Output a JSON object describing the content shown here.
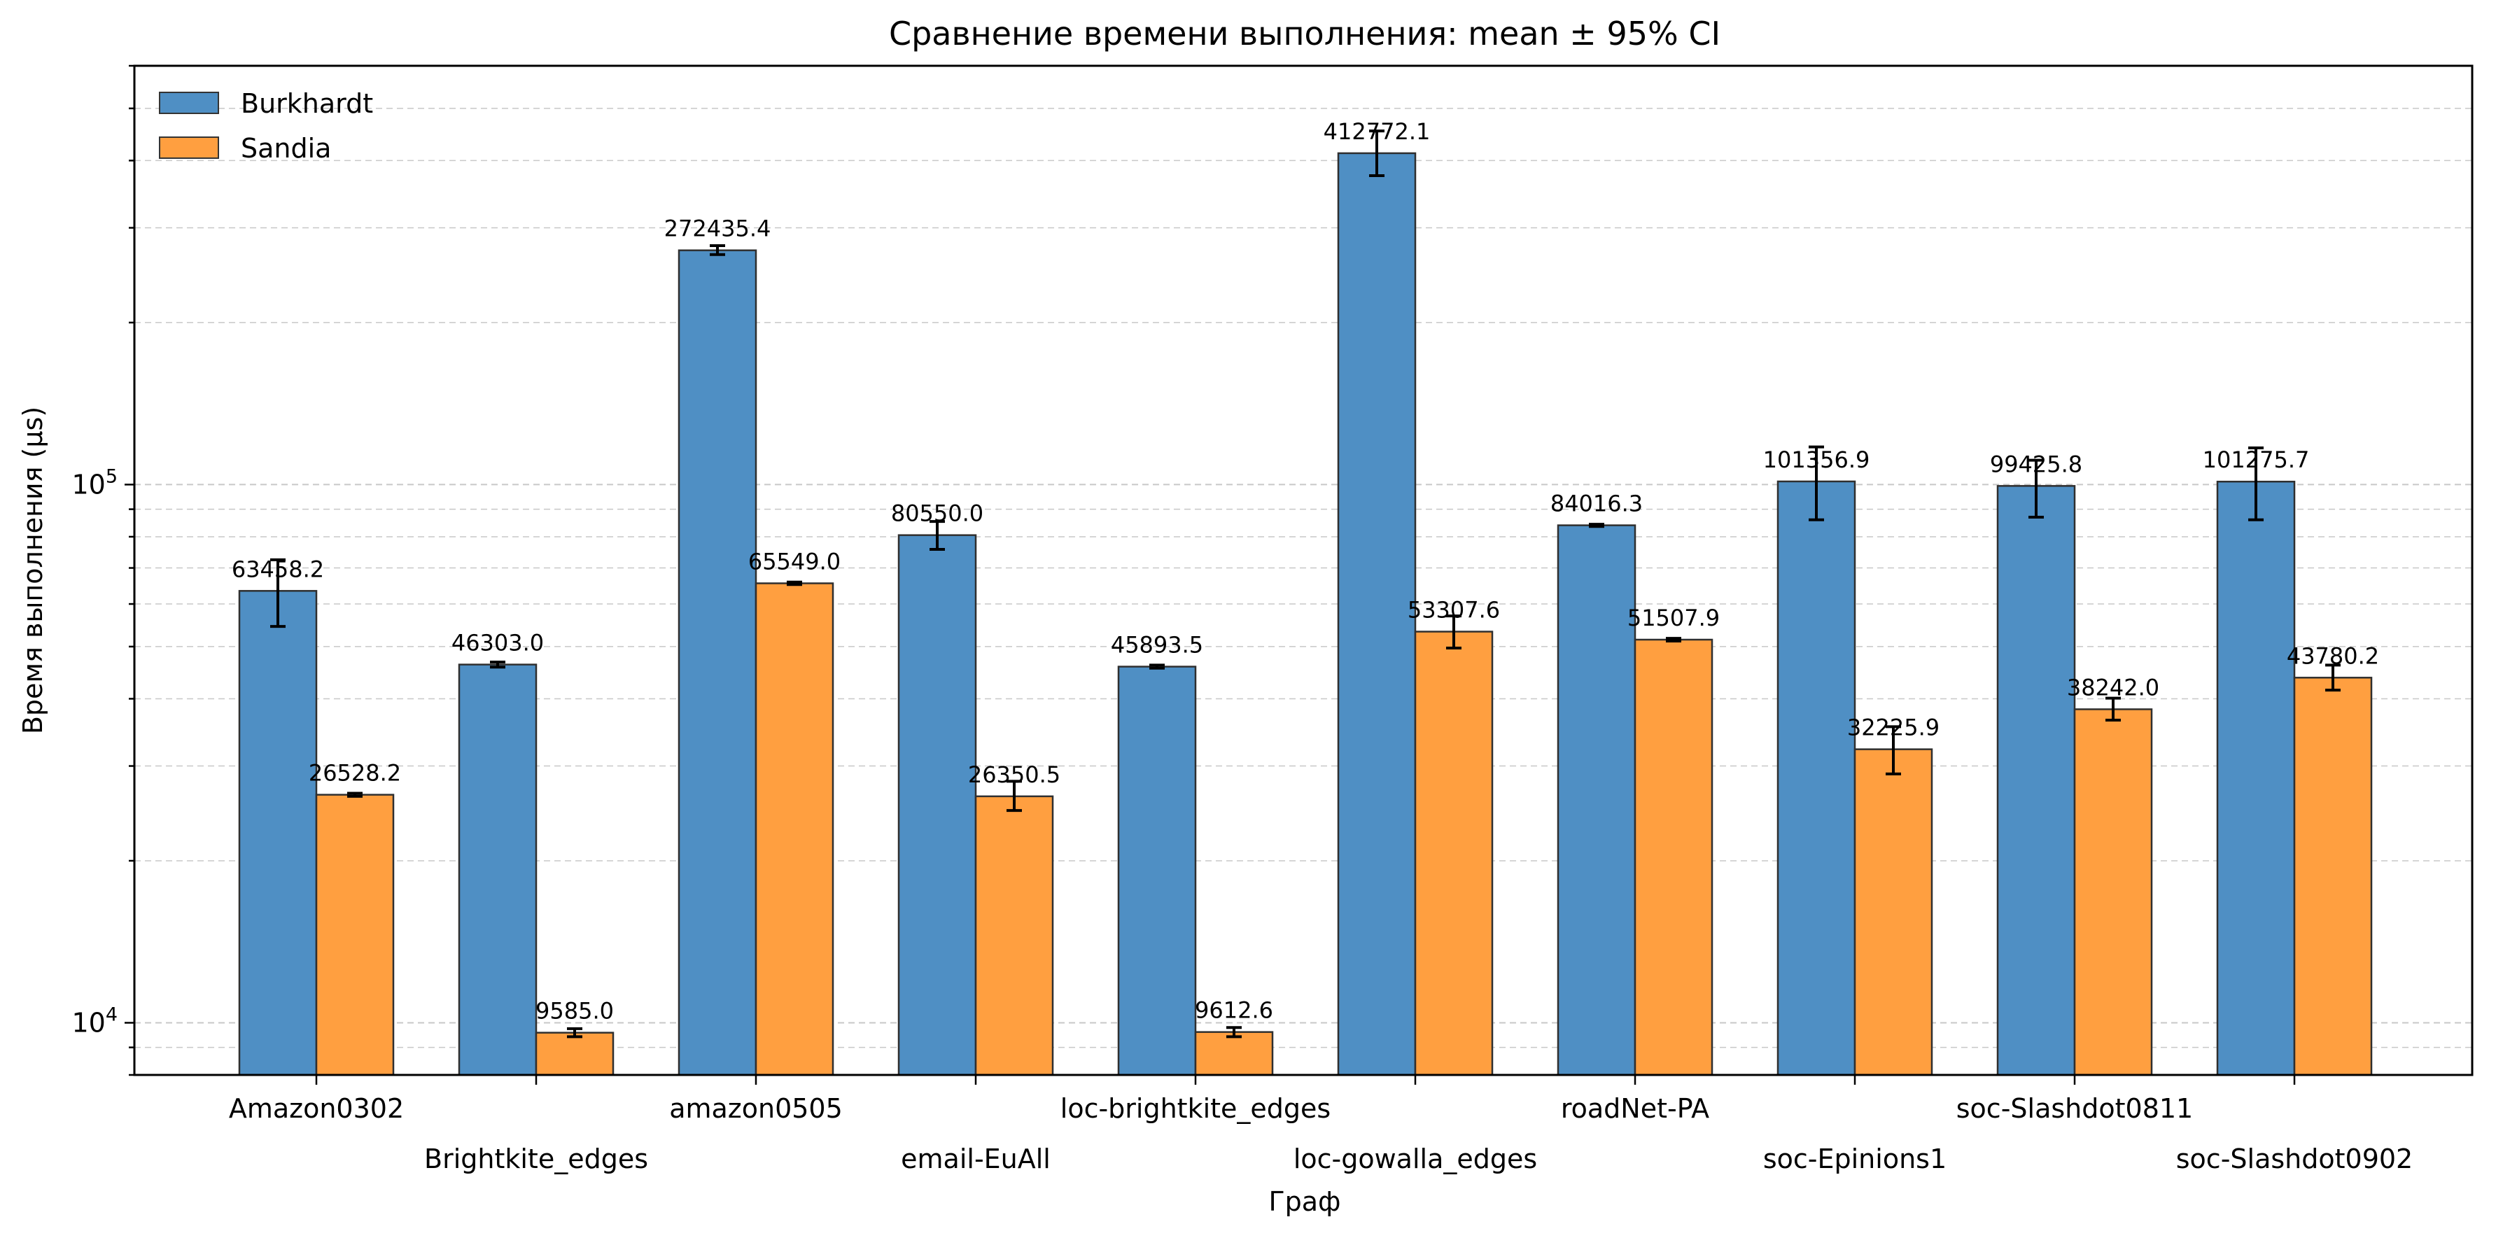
{
  "chart_data": {
    "type": "bar",
    "title": "Сравнение времени выполнения: mean ± 95% CI",
    "xlabel": "Граф",
    "ylabel": "Время выполнения (µs)",
    "yscale": "log",
    "ylim": [
      8000,
      600000
    ],
    "major_ticks": [
      {
        "value": 10000,
        "label": "10^4"
      },
      {
        "value": 100000,
        "label": "10^5"
      }
    ],
    "grid": "y major and minor, dashed",
    "legend_position": "top-left",
    "categories": [
      "Amazon0302",
      "Brightkite_edges",
      "amazon0505",
      "email-EuAll",
      "loc-brightkite_edges",
      "loc-gowalla_edges",
      "roadNet-PA",
      "soc-Epinions1",
      "soc-Slashdot0811",
      "soc-Slashdot0902"
    ],
    "series": [
      {
        "name": "Burkhardt",
        "color": "#4f8fc4",
        "values": [
          63458.2,
          46303.0,
          272435.4,
          80550.0,
          45893.5,
          412772.1,
          84016.3,
          101356.9,
          99425.8,
          101275.7
        ],
        "labels": [
          "63458.2",
          "46303.0",
          "272435.4",
          "80550.0",
          "45893.5",
          "412772.1",
          "84016.3",
          "101356.9",
          "99425.8",
          "101275.7"
        ],
        "ci_low": [
          54500,
          45800,
          267500,
          75800,
          45600,
          375000,
          83600,
          86000,
          87000,
          86000
        ],
        "ci_high": [
          72500,
          46800,
          278000,
          85400,
          46200,
          454000,
          84400,
          117500,
          111000,
          117000
        ]
      },
      {
        "name": "Sandia",
        "color": "#ff9f40",
        "values": [
          26528.2,
          9585.0,
          65549.0,
          26350.5,
          9612.6,
          53307.6,
          51507.9,
          32225.9,
          38242.0,
          43780.2
        ],
        "labels": [
          "26528.2",
          "9585.0",
          "65549.0",
          "26350.5",
          "9612.6",
          "53307.6",
          "51507.9",
          "32225.9",
          "38242.0",
          "43780.2"
        ],
        "ci_low": [
          26350,
          9420,
          65200,
          24800,
          9420,
          49700,
          51200,
          29000,
          36500,
          41500
        ],
        "ci_high": [
          26700,
          9750,
          65900,
          28100,
          9800,
          57000,
          51800,
          35500,
          40100,
          46200
        ]
      }
    ]
  }
}
